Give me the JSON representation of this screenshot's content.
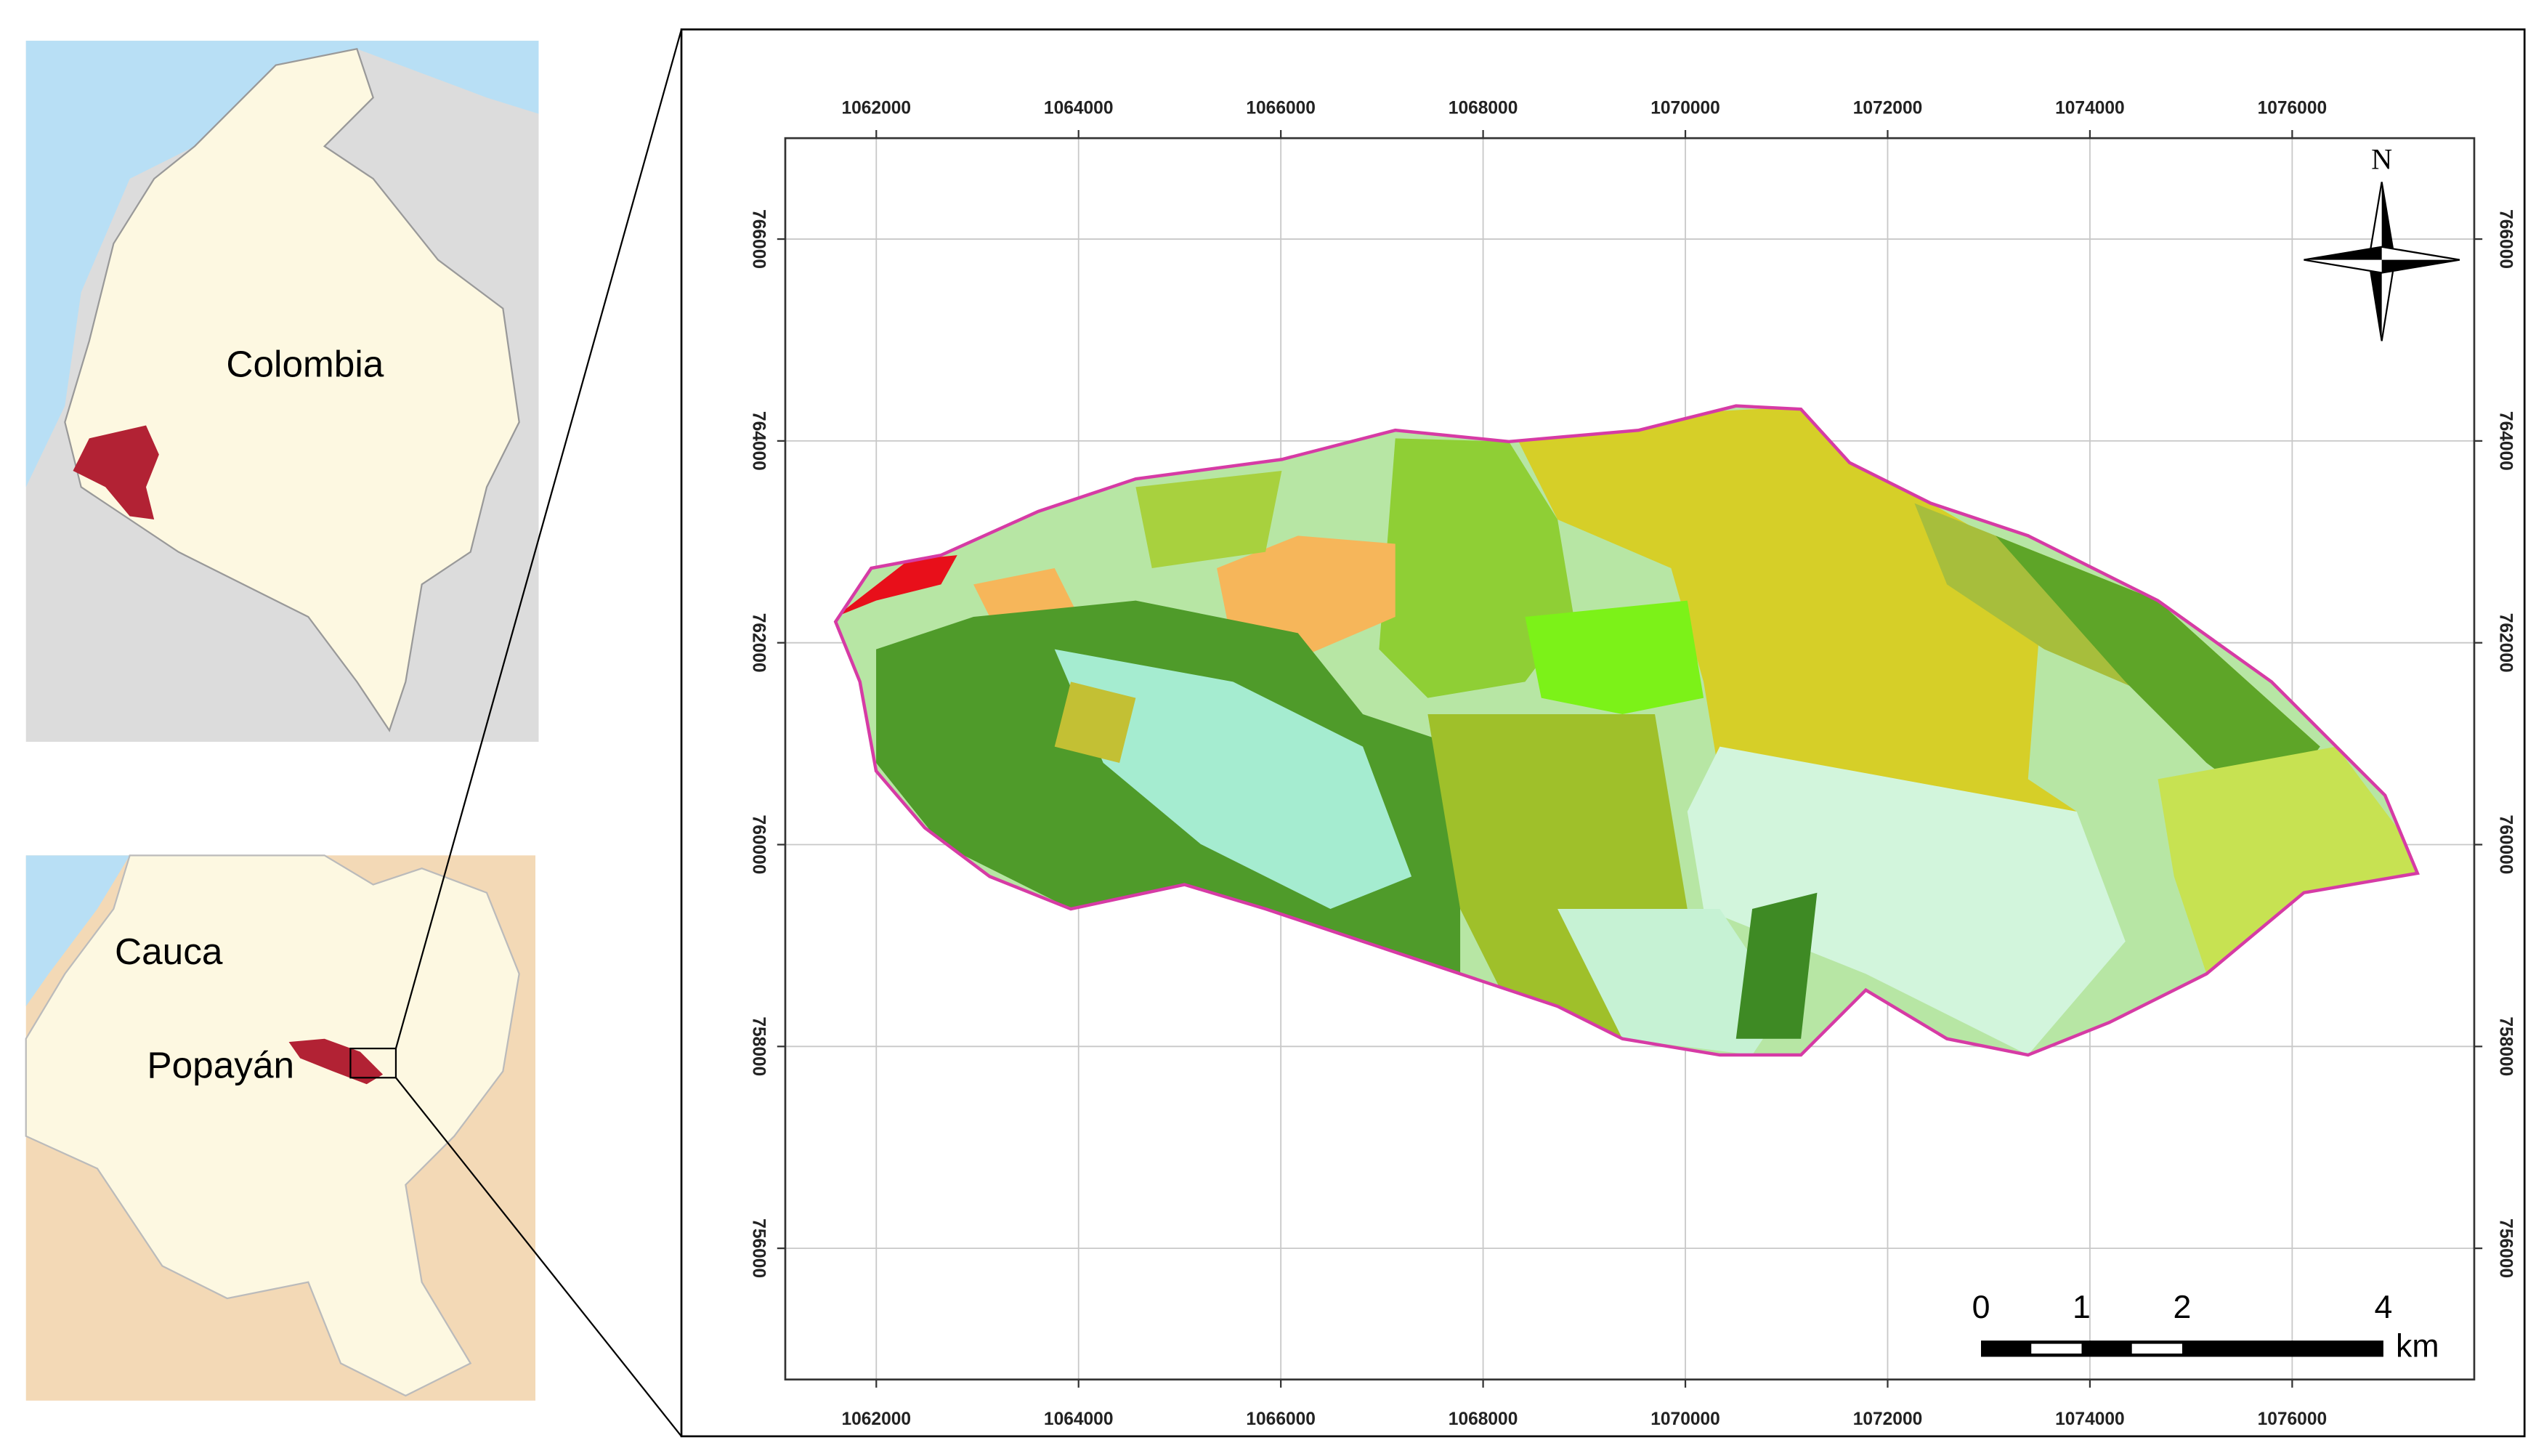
{
  "insets": {
    "country_label": "Colombia",
    "department_label": "Cauca",
    "city_label": "Popayán"
  },
  "map": {
    "xticks": [
      1062000,
      1064000,
      1066000,
      1068000,
      1070000,
      1072000,
      1074000,
      1076000
    ],
    "yticks": [
      756000,
      758000,
      760000,
      762000,
      764000,
      766000
    ],
    "xlim": [
      1061100,
      1077800
    ],
    "ylim": [
      754700,
      767000
    ],
    "north_label": "N",
    "scale_bar": {
      "labels": [
        0,
        1,
        2,
        4
      ],
      "unit": "km"
    }
  }
}
